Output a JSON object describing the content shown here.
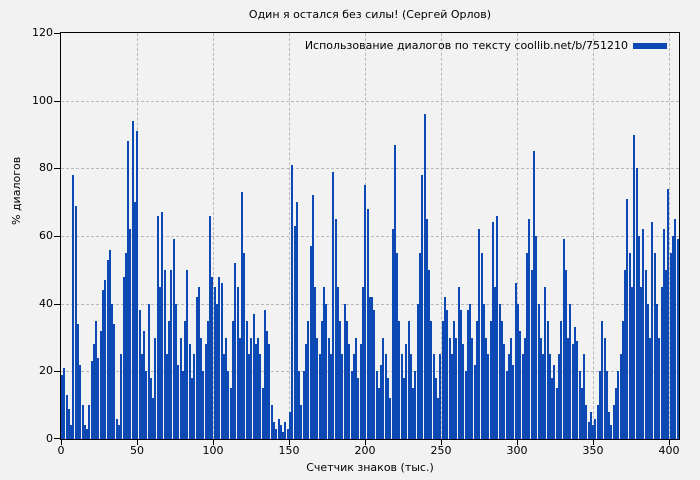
{
  "window": {
    "background": "#f2f2f2",
    "border_color": "#000000",
    "grid_color": "#b8b8b8"
  },
  "chart_data": {
    "type": "bar",
    "title": "Один я остался без силы! (Сергей Орлов)",
    "series_label": "Использование диалогов по тексту coollib.net/b/751210",
    "xlabel": "Счетчик знаков (тыс.)",
    "ylabel": "% диалогов",
    "xlim": [
      0,
      406.6
    ],
    "ylim": [
      0,
      120
    ],
    "x_ticks": [
      0,
      50,
      100,
      150,
      200,
      250,
      300,
      350,
      400
    ],
    "y_ticks": [
      0,
      20,
      40,
      60,
      80,
      100,
      120
    ],
    "grid": "dashed",
    "legend_position": "top-right-inside",
    "bar_color": "#0d49b4",
    "x_start": 0,
    "x_step": 1.5,
    "values": [
      19,
      21,
      13,
      9,
      4,
      78,
      69,
      34,
      22,
      10,
      4,
      3,
      10,
      23,
      28,
      35,
      24,
      32,
      44,
      47,
      53,
      56,
      40,
      34,
      6,
      4,
      25,
      48,
      55,
      88,
      62,
      94,
      70,
      91,
      38,
      25,
      32,
      20,
      40,
      18,
      12,
      30,
      66,
      45,
      67,
      50,
      25,
      35,
      50,
      59,
      40,
      22,
      30,
      20,
      35,
      50,
      28,
      18,
      25,
      42,
      45,
      30,
      20,
      28,
      35,
      66,
      48,
      45,
      40,
      48,
      46,
      25,
      30,
      20,
      15,
      35,
      52,
      45,
      30,
      73,
      55,
      35,
      25,
      30,
      37,
      28,
      30,
      25,
      15,
      38,
      32,
      28,
      10,
      5,
      3,
      6,
      4,
      2,
      5,
      3,
      8,
      81,
      63,
      70,
      20,
      10,
      20,
      28,
      35,
      57,
      72,
      45,
      30,
      25,
      35,
      45,
      40,
      30,
      25,
      79,
      65,
      45,
      35,
      25,
      40,
      35,
      28,
      20,
      25,
      30,
      18,
      28,
      45,
      75,
      68,
      42,
      42,
      38,
      20,
      15,
      22,
      30,
      25,
      18,
      12,
      62,
      87,
      55,
      35,
      25,
      18,
      28,
      35,
      25,
      15,
      20,
      40,
      55,
      78,
      96,
      65,
      50,
      35,
      25,
      18,
      12,
      25,
      35,
      42,
      38,
      30,
      25,
      35,
      30,
      45,
      38,
      28,
      20,
      38,
      40,
      30,
      22,
      35,
      62,
      55,
      40,
      30,
      25,
      35,
      64,
      45,
      66,
      40,
      35,
      28,
      20,
      25,
      30,
      22,
      46,
      40,
      32,
      25,
      30,
      55,
      65,
      50,
      85,
      60,
      40,
      30,
      25,
      45,
      35,
      25,
      18,
      22,
      15,
      25,
      35,
      59,
      50,
      30,
      40,
      28,
      33,
      29,
      20,
      15,
      25,
      10,
      5,
      8,
      4,
      6,
      10,
      20,
      35,
      30,
      20,
      8,
      4,
      10,
      15,
      20,
      25,
      35,
      50,
      71,
      55,
      45,
      90,
      80,
      60,
      45,
      62,
      50,
      40,
      30,
      64,
      55,
      40,
      30,
      45,
      62,
      50,
      74,
      55,
      60,
      65,
      59
    ]
  }
}
